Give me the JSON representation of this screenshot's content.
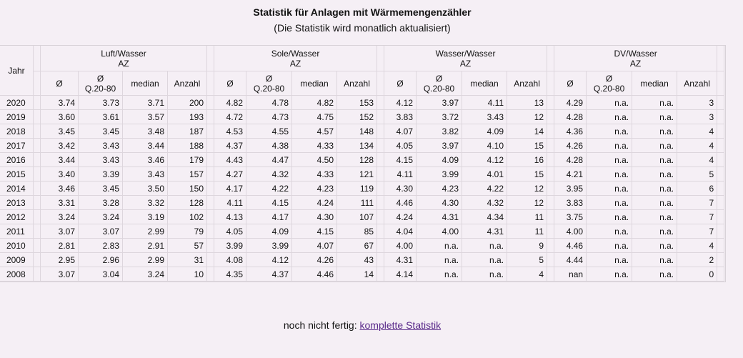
{
  "title": "Statistik für Anlagen mit Wärmemengenzähler",
  "subtitle": "(Die Statistik wird monatlich aktualisiert)",
  "table": {
    "year_header": "Jahr",
    "groups": [
      {
        "name": "Luft/Wasser",
        "unit": "AZ"
      },
      {
        "name": "Sole/Wasser",
        "unit": "AZ"
      },
      {
        "name": "Wasser/Wasser",
        "unit": "AZ"
      },
      {
        "name": "DV/Wasser",
        "unit": "AZ"
      }
    ],
    "subheaders": {
      "mean": "Ø",
      "q_mean_line1": "Ø",
      "q_mean_line2": "Q.20-80",
      "median": "median",
      "count": "Anzahl"
    },
    "rows": [
      [
        "2020",
        "3.74",
        "3.73",
        "3.71",
        "200",
        "4.82",
        "4.78",
        "4.82",
        "153",
        "4.12",
        "3.97",
        "4.11",
        "13",
        "4.29",
        "n.a.",
        "n.a.",
        "3"
      ],
      [
        "2019",
        "3.60",
        "3.61",
        "3.57",
        "193",
        "4.72",
        "4.73",
        "4.75",
        "152",
        "3.83",
        "3.72",
        "3.43",
        "12",
        "4.28",
        "n.a.",
        "n.a.",
        "3"
      ],
      [
        "2018",
        "3.45",
        "3.45",
        "3.48",
        "187",
        "4.53",
        "4.55",
        "4.57",
        "148",
        "4.07",
        "3.82",
        "4.09",
        "14",
        "4.36",
        "n.a.",
        "n.a.",
        "4"
      ],
      [
        "2017",
        "3.42",
        "3.43",
        "3.44",
        "188",
        "4.37",
        "4.38",
        "4.33",
        "134",
        "4.05",
        "3.97",
        "4.10",
        "15",
        "4.26",
        "n.a.",
        "n.a.",
        "4"
      ],
      [
        "2016",
        "3.44",
        "3.43",
        "3.46",
        "179",
        "4.43",
        "4.47",
        "4.50",
        "128",
        "4.15",
        "4.09",
        "4.12",
        "16",
        "4.28",
        "n.a.",
        "n.a.",
        "4"
      ],
      [
        "2015",
        "3.40",
        "3.39",
        "3.43",
        "157",
        "4.27",
        "4.32",
        "4.33",
        "121",
        "4.11",
        "3.99",
        "4.01",
        "15",
        "4.21",
        "n.a.",
        "n.a.",
        "5"
      ],
      [
        "2014",
        "3.46",
        "3.45",
        "3.50",
        "150",
        "4.17",
        "4.22",
        "4.23",
        "119",
        "4.30",
        "4.23",
        "4.22",
        "12",
        "3.95",
        "n.a.",
        "n.a.",
        "6"
      ],
      [
        "2013",
        "3.31",
        "3.28",
        "3.32",
        "128",
        "4.11",
        "4.15",
        "4.24",
        "111",
        "4.46",
        "4.30",
        "4.32",
        "12",
        "3.83",
        "n.a.",
        "n.a.",
        "7"
      ],
      [
        "2012",
        "3.24",
        "3.24",
        "3.19",
        "102",
        "4.13",
        "4.17",
        "4.30",
        "107",
        "4.24",
        "4.31",
        "4.34",
        "11",
        "3.75",
        "n.a.",
        "n.a.",
        "7"
      ],
      [
        "2011",
        "3.07",
        "3.07",
        "2.99",
        "79",
        "4.05",
        "4.09",
        "4.15",
        "85",
        "4.04",
        "4.00",
        "4.31",
        "11",
        "4.00",
        "n.a.",
        "n.a.",
        "7"
      ],
      [
        "2010",
        "2.81",
        "2.83",
        "2.91",
        "57",
        "3.99",
        "3.99",
        "4.07",
        "67",
        "4.00",
        "n.a.",
        "n.a.",
        "9",
        "4.46",
        "n.a.",
        "n.a.",
        "4"
      ],
      [
        "2009",
        "2.95",
        "2.96",
        "2.99",
        "31",
        "4.08",
        "4.12",
        "4.26",
        "43",
        "4.31",
        "n.a.",
        "n.a.",
        "5",
        "4.44",
        "n.a.",
        "n.a.",
        "2"
      ],
      [
        "2008",
        "3.07",
        "3.04",
        "3.24",
        "10",
        "4.35",
        "4.37",
        "4.46",
        "14",
        "4.14",
        "n.a.",
        "n.a.",
        "4",
        "nan",
        "n.a.",
        "n.a.",
        "0"
      ]
    ]
  },
  "footer": {
    "text": "noch nicht fertig:",
    "link_label": "komplette Statistik"
  }
}
